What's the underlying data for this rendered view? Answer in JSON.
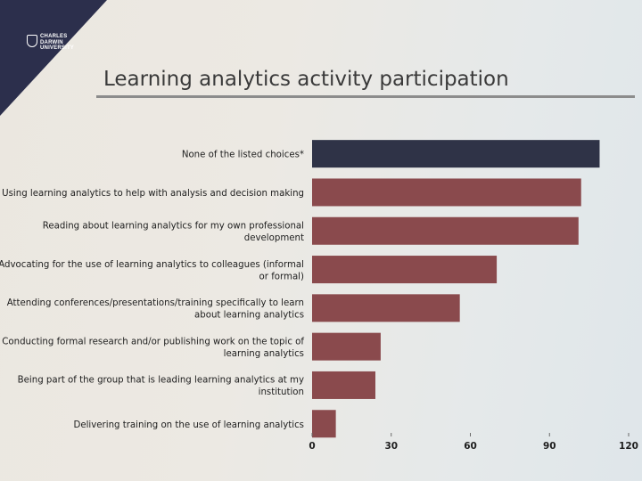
{
  "logo": {
    "lines": [
      "CHARLES",
      "DARWIN",
      "UNIVERSITY"
    ]
  },
  "title": "Learning analytics activity participation",
  "colors": {
    "highlight_bar": "#2f3347",
    "bar": "#8a4a4d",
    "logo_bg": "#2c2f4c"
  },
  "chart_data": {
    "type": "bar",
    "orientation": "horizontal",
    "title": "Learning analytics activity participation",
    "categories": [
      [
        "None of the listed choices*"
      ],
      [
        "Using learning analytics to help with analysis and decision making"
      ],
      [
        "Reading about learning analytics for my own professional",
        "development"
      ],
      [
        "Advocating for the use of learning analytics to colleagues (informal",
        "or formal)"
      ],
      [
        "Attending conferences/presentations/training specifically to learn",
        "about learning analytics"
      ],
      [
        "Conducting formal research and/or publishing work on the topic of",
        "learning analytics"
      ],
      [
        "Being part of the group that is leading learning analytics at my",
        "institution"
      ],
      [
        "Delivering training on the use of learning analytics"
      ]
    ],
    "values": [
      109,
      102,
      101,
      70,
      56,
      26,
      24,
      9
    ],
    "highlight_index": 0,
    "xlim": [
      0,
      120
    ],
    "xticks": [
      0,
      30,
      60,
      90,
      120
    ],
    "grid": false,
    "xlabel": "",
    "ylabel": ""
  }
}
